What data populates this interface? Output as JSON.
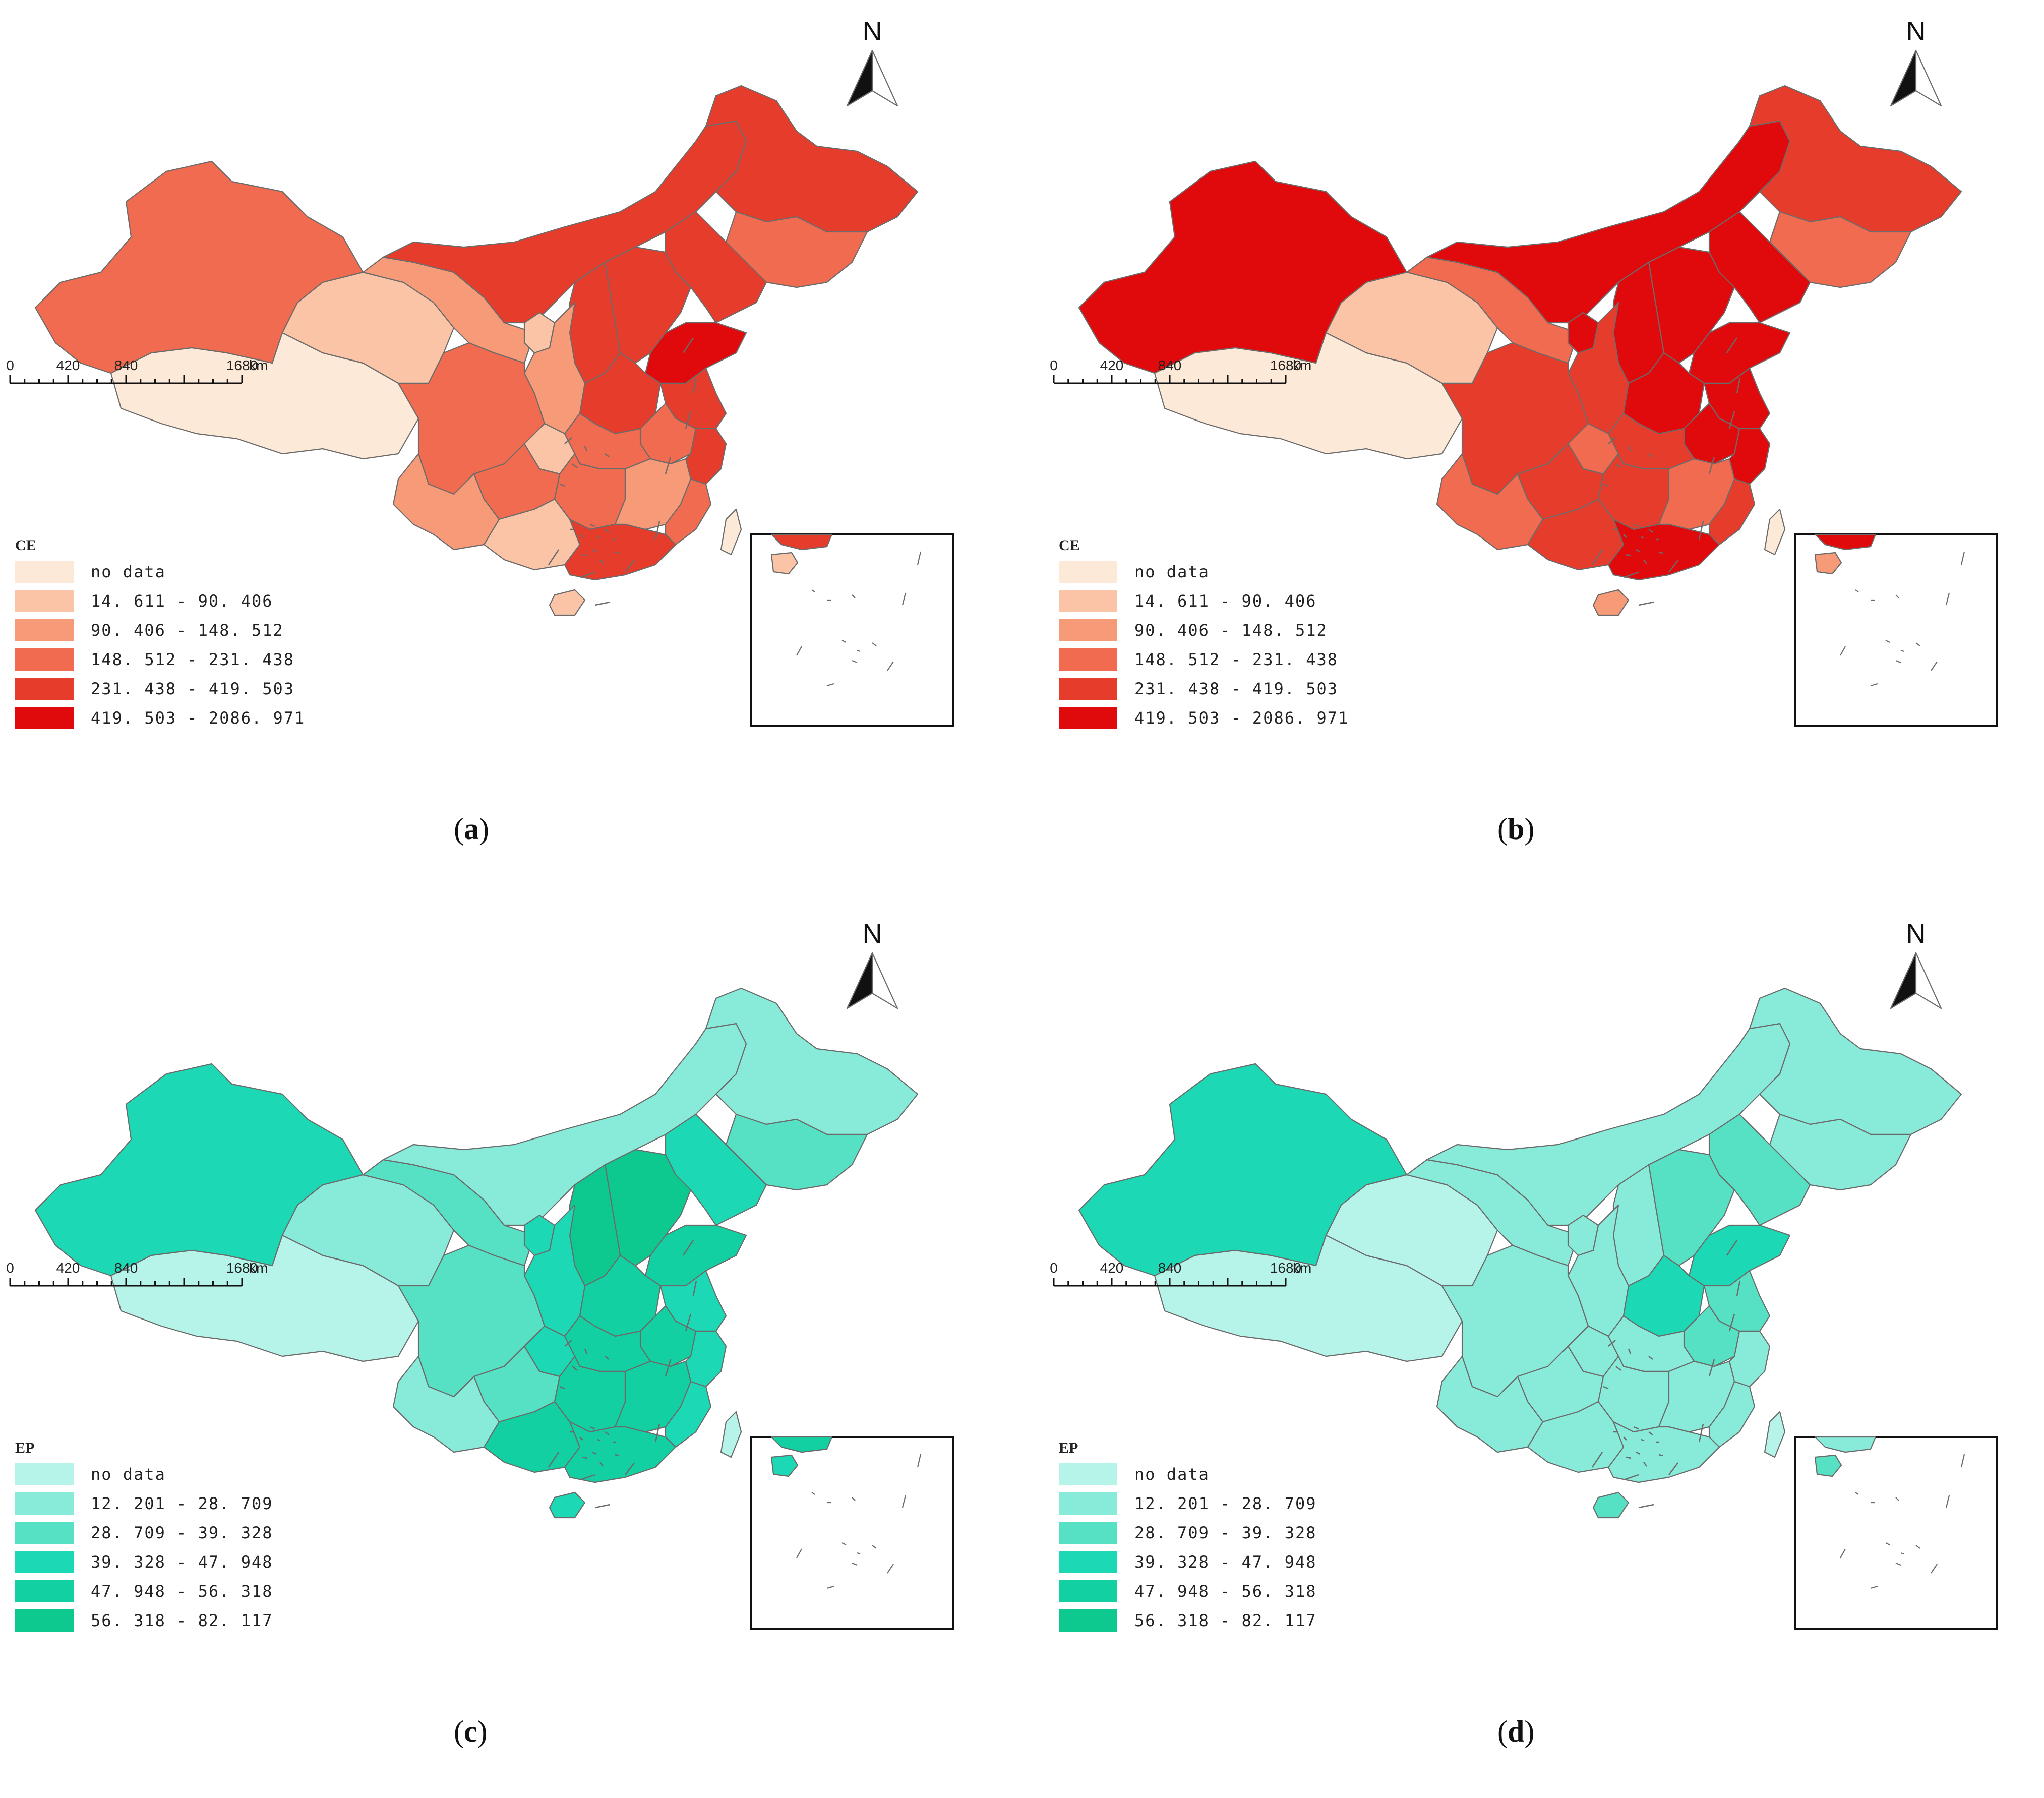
{
  "panels": [
    {
      "id": "a",
      "caption_letter": "a",
      "legend_title": "CE",
      "legend": [
        {
          "label": "no data",
          "color": "#fde9d7"
        },
        {
          "label": "14. 611 - 90. 406",
          "color": "#fbc4a7"
        },
        {
          "label": "90. 406 - 148. 512",
          "color": "#f69a78"
        },
        {
          "label": "148. 512 - 231. 438",
          "color": "#f06b4f"
        },
        {
          "label": "231. 438 - 419. 503",
          "color": "#e63c2c"
        },
        {
          "label": "419. 503 - 2086. 971",
          "color": "#e00a0c"
        }
      ],
      "region_classes": {
        "xinjiang": 3,
        "tibet": 0,
        "qinghai": 1,
        "gansu": 2,
        "inner_mongolia": 4,
        "heilongjiang": 4,
        "jilin": 3,
        "liaoning": 4,
        "hebei": 4,
        "shandong": 5,
        "henan": 4,
        "shanxi": 4,
        "shaanxi": 2,
        "ningxia": 1,
        "sichuan": 3,
        "chongqing": 1,
        "yunnan": 2,
        "guizhou": 3,
        "guangxi": 1,
        "guangdong": 4,
        "hunan": 3,
        "hubei": 3,
        "jiangxi": 2,
        "fujian": 3,
        "zhejiang": 4,
        "jiangsu": 4,
        "anhui": 3,
        "beijing": 1,
        "hainan": 1,
        "taiwan": 0
      }
    },
    {
      "id": "b",
      "caption_letter": "b",
      "legend_title": "CE",
      "legend": [
        {
          "label": "no data",
          "color": "#fde9d7"
        },
        {
          "label": "14. 611 - 90. 406",
          "color": "#fbc4a7"
        },
        {
          "label": "90. 406 - 148. 512",
          "color": "#f69a78"
        },
        {
          "label": "148. 512 - 231. 438",
          "color": "#f06b4f"
        },
        {
          "label": "231. 438 - 419. 503",
          "color": "#e63c2c"
        },
        {
          "label": "419. 503 - 2086. 971",
          "color": "#e00a0c"
        }
      ],
      "region_classes": {
        "xinjiang": 5,
        "tibet": 0,
        "qinghai": 1,
        "gansu": 3,
        "inner_mongolia": 5,
        "heilongjiang": 4,
        "jilin": 3,
        "liaoning": 5,
        "hebei": 5,
        "shandong": 5,
        "henan": 5,
        "shanxi": 5,
        "shaanxi": 4,
        "ningxia": 5,
        "sichuan": 4,
        "chongqing": 3,
        "yunnan": 3,
        "guizhou": 4,
        "guangxi": 4,
        "guangdong": 5,
        "hunan": 4,
        "hubei": 4,
        "jiangxi": 3,
        "fujian": 4,
        "zhejiang": 5,
        "jiangsu": 5,
        "anhui": 5,
        "beijing": 1,
        "hainan": 2,
        "taiwan": 0
      }
    },
    {
      "id": "c",
      "caption_letter": "c",
      "legend_title": "EP",
      "legend": [
        {
          "label": "no data",
          "color": "#b6f3e9"
        },
        {
          "label": "12. 201 - 28. 709",
          "color": "#88ead8"
        },
        {
          "label": "28. 709 - 39. 328",
          "color": "#56e0c4"
        },
        {
          "label": "39. 328 - 47. 948",
          "color": "#1dd8b5"
        },
        {
          "label": "47. 948 - 56. 318",
          "color": "#12d0a2"
        },
        {
          "label": "56. 318 - 82. 117",
          "color": "#0dc990"
        }
      ],
      "region_classes": {
        "xinjiang": 3,
        "tibet": 0,
        "qinghai": 1,
        "gansu": 2,
        "inner_mongolia": 1,
        "heilongjiang": 1,
        "jilin": 2,
        "liaoning": 3,
        "hebei": 5,
        "shandong": 4,
        "henan": 4,
        "shanxi": 5,
        "shaanxi": 3,
        "ningxia": 3,
        "sichuan": 2,
        "chongqing": 3,
        "yunnan": 1,
        "guizhou": 2,
        "guangxi": 4,
        "guangdong": 4,
        "hunan": 4,
        "hubei": 4,
        "jiangxi": 4,
        "fujian": 3,
        "zhejiang": 3,
        "jiangsu": 3,
        "anhui": 4,
        "beijing": 3,
        "hainan": 3,
        "taiwan": 0
      }
    },
    {
      "id": "d",
      "caption_letter": "d",
      "legend_title": "EP",
      "legend": [
        {
          "label": "no data",
          "color": "#b6f3e9"
        },
        {
          "label": "12. 201 - 28. 709",
          "color": "#88ead8"
        },
        {
          "label": "28. 709 - 39. 328",
          "color": "#56e0c4"
        },
        {
          "label": "39. 328 - 47. 948",
          "color": "#1dd8b5"
        },
        {
          "label": "47. 948 - 56. 318",
          "color": "#12d0a2"
        },
        {
          "label": "56. 318 - 82. 117",
          "color": "#0dc990"
        }
      ],
      "region_classes": {
        "xinjiang": 3,
        "tibet": 0,
        "qinghai": 0,
        "gansu": 1,
        "inner_mongolia": 1,
        "heilongjiang": 1,
        "jilin": 1,
        "liaoning": 2,
        "hebei": 2,
        "shandong": 3,
        "henan": 3,
        "shanxi": 1,
        "shaanxi": 1,
        "ningxia": 1,
        "sichuan": 1,
        "chongqing": 1,
        "yunnan": 1,
        "guizhou": 1,
        "guangxi": 1,
        "guangdong": 1,
        "hunan": 1,
        "hubei": 1,
        "jiangxi": 1,
        "fujian": 1,
        "zhejiang": 1,
        "jiangsu": 2,
        "anhui": 2,
        "beijing": 4,
        "hainan": 2,
        "taiwan": 0
      }
    }
  ],
  "scale_bar": {
    "ticks": [
      "0",
      "420",
      "840",
      "1680"
    ],
    "unit": "km"
  },
  "north_arrow": {
    "label": "N",
    "icon": "north-arrow-icon"
  }
}
